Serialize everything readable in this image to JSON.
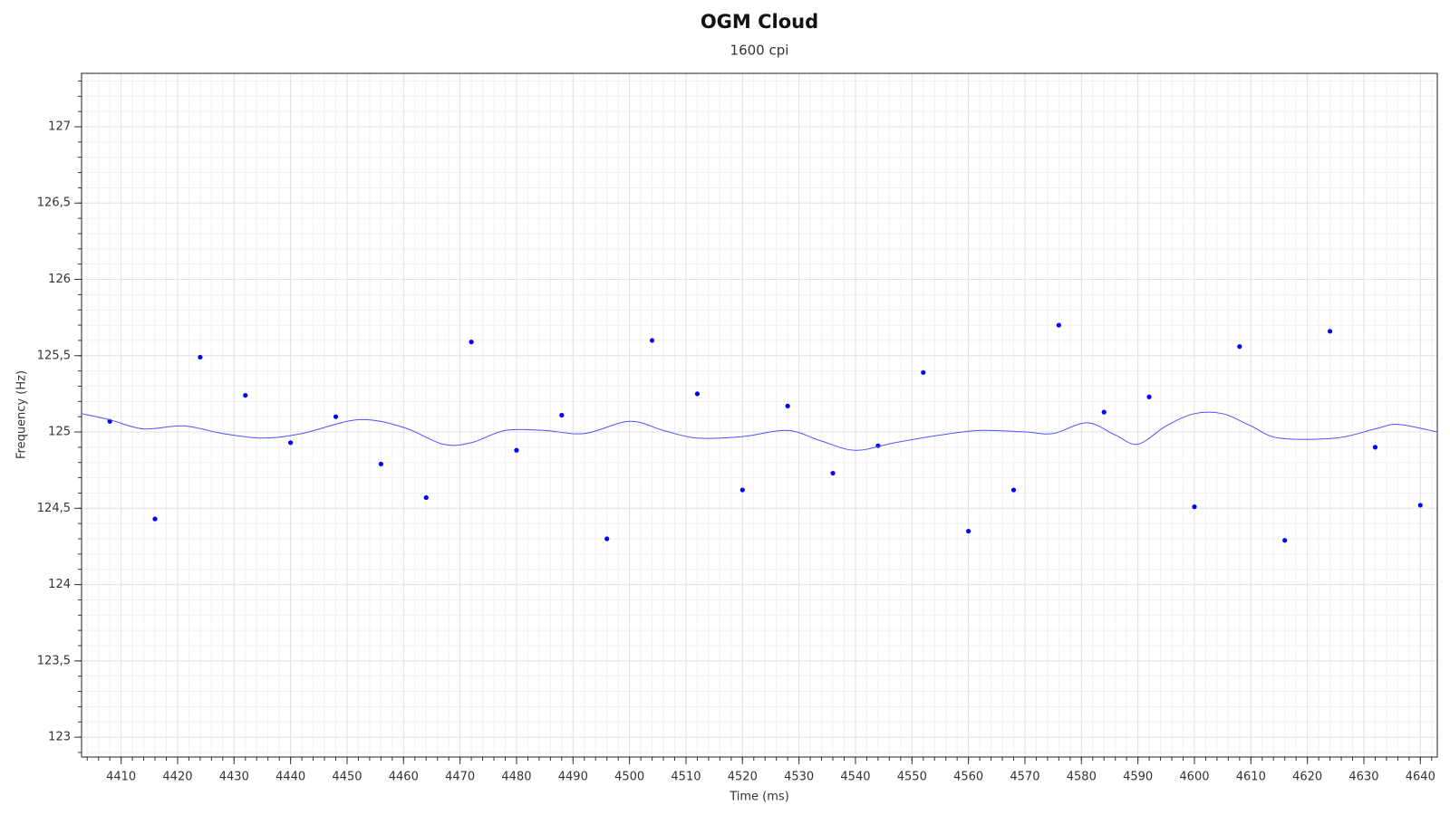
{
  "chart_data": {
    "type": "scatter",
    "title": "OGM Cloud",
    "subtitle": "1600 cpi",
    "x_label": "Time (ms)",
    "y_label": "Frequency (Hz)",
    "xlim": [
      4403,
      4643
    ],
    "ylim": [
      122.87,
      127.35
    ],
    "xticks": [
      4410,
      4420,
      4430,
      4440,
      4450,
      4460,
      4470,
      4480,
      4490,
      4500,
      4510,
      4520,
      4530,
      4540,
      4550,
      4560,
      4570,
      4580,
      4590,
      4600,
      4610,
      4620,
      4630,
      4640
    ],
    "yticks": [
      123,
      {
        "value": 123.5,
        "label": "123,5"
      },
      124,
      {
        "value": 124.5,
        "label": "124,5"
      },
      125,
      {
        "value": 125.5,
        "label": "125,5"
      },
      126,
      {
        "value": 126.5,
        "label": "126,5"
      },
      127
    ],
    "grid": true,
    "series": [
      {
        "type": "scatter",
        "color": "#0000ff",
        "x": [
          4408,
          4416,
          4424,
          4432,
          4440,
          4448,
          4456,
          4464,
          4472,
          4480,
          4488,
          4496,
          4504,
          4512,
          4520,
          4528,
          4536,
          4544,
          4552,
          4560,
          4568,
          4576,
          4584,
          4592,
          4600,
          4608,
          4616,
          4624,
          4632,
          4640
        ],
        "values": [
          125.07,
          124.43,
          125.49,
          125.24,
          124.93,
          125.1,
          124.79,
          124.57,
          125.59,
          124.88,
          125.11,
          124.3,
          125.6,
          125.25,
          124.62,
          125.17,
          124.73,
          124.91,
          125.39,
          124.35,
          124.62,
          125.7,
          125.13,
          125.23,
          124.51,
          125.56,
          124.29,
          125.66,
          124.9,
          124.52
        ]
      },
      {
        "type": "line",
        "color": "#5050ff",
        "x": [
          4403,
          4408,
          4414,
          4421,
          4428,
          4435,
          4442,
          4452,
          4460,
          4467,
          4472,
          4478,
          4485,
          4492,
          4500,
          4506,
          4512,
          4520,
          4528,
          4534,
          4540,
          4547,
          4555,
          4562,
          4570,
          4575,
          4581,
          4586,
          4590,
          4595,
          4600,
          4605,
          4610,
          4615,
          4625,
          4632,
          4636,
          4643
        ],
        "values": [
          125.12,
          125.08,
          125.02,
          125.04,
          124.99,
          124.96,
          124.99,
          125.08,
          125.03,
          124.92,
          124.93,
          125.01,
          125.01,
          124.99,
          125.07,
          125.01,
          124.96,
          124.97,
          125.01,
          124.94,
          124.88,
          124.93,
          124.98,
          125.01,
          125.0,
          124.99,
          125.06,
          124.98,
          124.92,
          125.04,
          125.12,
          125.12,
          125.04,
          124.96,
          124.96,
          125.02,
          125.05,
          125.0
        ]
      }
    ]
  }
}
